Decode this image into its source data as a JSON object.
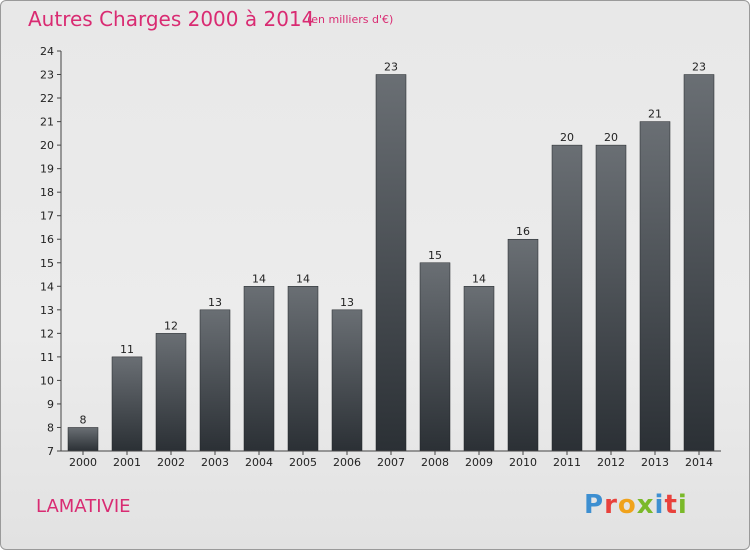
{
  "header": {
    "title": "Autres Charges 2000 à 2014",
    "subtitle": "(en milliers d'€)"
  },
  "footer": {
    "commune": "LAMATIVIE",
    "logo_letters": [
      "P",
      "r",
      "o",
      "x",
      "i",
      "t",
      "i"
    ],
    "logo_colors": [
      "#3d8fd1",
      "#e8413c",
      "#f0a21b",
      "#7ab929",
      "#3d8fd1",
      "#e8413c",
      "#7ab929"
    ]
  },
  "colors": {
    "title": "#d92b72",
    "bar_top": "#6a6f74",
    "bar_bottom": "#2b3035",
    "axis": "#444444"
  },
  "chart_data": {
    "type": "bar",
    "title": "Autres Charges 2000 à 2014",
    "subtitle": "(en milliers d'€)",
    "categories": [
      "2000",
      "2001",
      "2002",
      "2003",
      "2004",
      "2005",
      "2006",
      "2007",
      "2008",
      "2009",
      "2010",
      "2011",
      "2012",
      "2013",
      "2014"
    ],
    "values": [
      8,
      11,
      12,
      13,
      14,
      14,
      13,
      23,
      15,
      14,
      16,
      20,
      20,
      21,
      23
    ],
    "ylim": [
      7,
      24
    ],
    "yticks": [
      7,
      8,
      9,
      10,
      11,
      12,
      13,
      14,
      15,
      16,
      17,
      18,
      19,
      20,
      21,
      22,
      23,
      24
    ],
    "grid": false,
    "data_labels": true
  }
}
